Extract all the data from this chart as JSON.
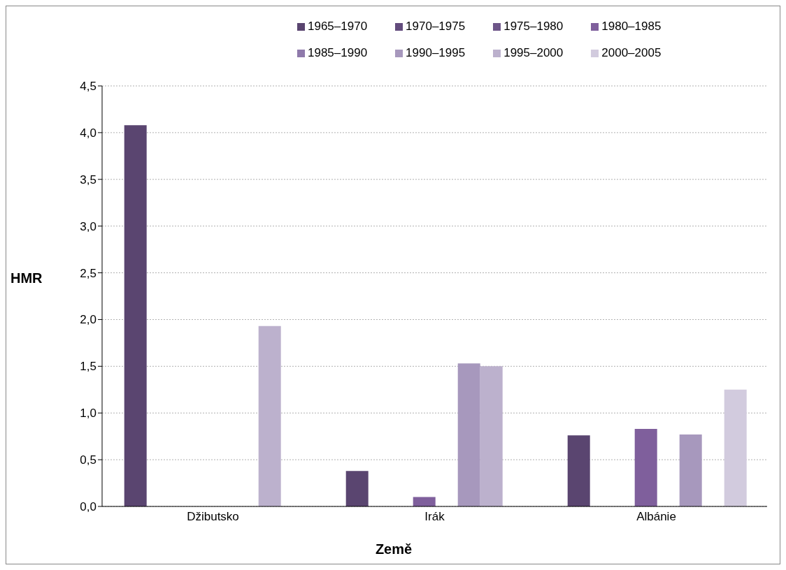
{
  "chart_data": {
    "type": "bar",
    "xlabel": "Země",
    "ylabel": "HMR",
    "categories": [
      "Džibutsko",
      "Irák",
      "Albánie"
    ],
    "series": [
      {
        "name": "1965–1970",
        "color": "#5a4570",
        "values": [
          4.08,
          0.38,
          0.76
        ]
      },
      {
        "name": "1970–1975",
        "color": "#634c7d",
        "values": [
          null,
          null,
          null
        ]
      },
      {
        "name": "1975–1980",
        "color": "#6e5689",
        "values": [
          null,
          null,
          null
        ]
      },
      {
        "name": "1980–1985",
        "color": "#7f5f9c",
        "values": [
          null,
          0.1,
          0.83
        ]
      },
      {
        "name": "1985–1990",
        "color": "#8f7aab",
        "values": [
          null,
          null,
          null
        ]
      },
      {
        "name": "1990–1995",
        "color": "#a798bd",
        "values": [
          null,
          1.53,
          0.77
        ]
      },
      {
        "name": "1995–2000",
        "color": "#bcb1cd",
        "values": [
          1.93,
          1.5,
          null
        ]
      },
      {
        "name": "2000–2005",
        "color": "#d2cbde",
        "values": [
          null,
          null,
          1.25
        ]
      }
    ],
    "ylim": [
      0,
      4.5
    ],
    "yticks": [
      {
        "value": 0,
        "label": "0,0"
      },
      {
        "value": 0.5,
        "label": "0,5"
      },
      {
        "value": 1,
        "label": "1,0"
      },
      {
        "value": 1.5,
        "label": "1,5"
      },
      {
        "value": 2,
        "label": "2,0"
      },
      {
        "value": 2.5,
        "label": "2,5"
      },
      {
        "value": 3,
        "label": "3,0"
      },
      {
        "value": 3.5,
        "label": "3,5"
      },
      {
        "value": 4,
        "label": "4,0"
      },
      {
        "value": 4.5,
        "label": "4,5"
      }
    ],
    "grid": "y",
    "legend": "top right"
  }
}
